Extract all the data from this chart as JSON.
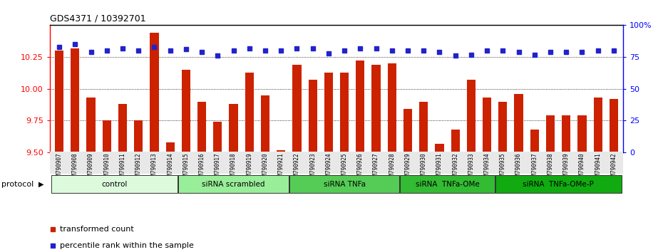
{
  "title": "GDS4371 / 10392701",
  "categories": [
    "GSM790907",
    "GSM790908",
    "GSM790909",
    "GSM790910",
    "GSM790911",
    "GSM790912",
    "GSM790913",
    "GSM790914",
    "GSM790915",
    "GSM790916",
    "GSM790917",
    "GSM790918",
    "GSM790919",
    "GSM790920",
    "GSM790921",
    "GSM790922",
    "GSM790923",
    "GSM790924",
    "GSM790925",
    "GSM790926",
    "GSM790927",
    "GSM790928",
    "GSM790929",
    "GSM790930",
    "GSM790931",
    "GSM790932",
    "GSM790933",
    "GSM790934",
    "GSM790935",
    "GSM790936",
    "GSM790937",
    "GSM790938",
    "GSM790939",
    "GSM790940",
    "GSM790941",
    "GSM790942"
  ],
  "bar_values": [
    10.3,
    10.32,
    9.93,
    9.75,
    9.88,
    9.75,
    10.44,
    9.58,
    10.15,
    9.9,
    9.74,
    9.88,
    10.13,
    9.95,
    9.52,
    10.19,
    10.07,
    10.13,
    10.13,
    10.22,
    10.19,
    10.2,
    9.84,
    9.9,
    9.57,
    9.68,
    10.07,
    9.93,
    9.9,
    9.96,
    9.68,
    9.79,
    9.79,
    9.79,
    9.93,
    9.92
  ],
  "percentile_values": [
    83,
    85,
    79,
    80,
    82,
    80,
    83,
    80,
    81,
    79,
    76,
    80,
    82,
    80,
    80,
    82,
    82,
    78,
    80,
    82,
    82,
    80,
    80,
    80,
    79,
    76,
    77,
    80,
    80,
    79,
    77,
    79,
    79,
    79,
    80,
    80
  ],
  "ylim": [
    9.5,
    10.5
  ],
  "yticks_left": [
    9.5,
    9.75,
    10.0,
    10.25
  ],
  "ylim2": [
    0,
    100
  ],
  "yticks2": [
    0,
    25,
    50,
    75,
    100
  ],
  "ytick_labels2": [
    "0",
    "25",
    "50",
    "75",
    "100%"
  ],
  "bar_color": "#cc2200",
  "percentile_color": "#2222cc",
  "protocol_groups": [
    {
      "label": "control",
      "start": 0,
      "end": 7,
      "color": "#ddfadd"
    },
    {
      "label": "siRNA scrambled",
      "start": 8,
      "end": 14,
      "color": "#99ee99"
    },
    {
      "label": "siRNA TNFa",
      "start": 15,
      "end": 21,
      "color": "#55cc55"
    },
    {
      "label": "siRNA  TNFa-OMe",
      "start": 22,
      "end": 27,
      "color": "#33bb33"
    },
    {
      "label": "siRNA  TNFa-OMe-P",
      "start": 28,
      "end": 35,
      "color": "#11aa11"
    }
  ],
  "legend_items": [
    {
      "label": "transformed count",
      "color": "#cc2200",
      "marker": "s"
    },
    {
      "label": "percentile rank within the sample",
      "color": "#2222cc",
      "marker": "s"
    }
  ],
  "protocol_label": "protocol",
  "bg_color": "#e8e8e8"
}
